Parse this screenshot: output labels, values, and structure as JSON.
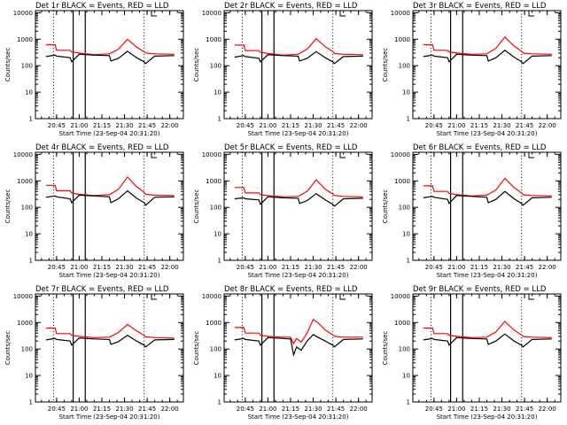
{
  "colors": {
    "events": "#000000",
    "lld": "#ff0000",
    "axes": "#000000",
    "background": "#ffffff"
  },
  "common": {
    "ylabel": "Counts/sec",
    "xlabel": "Start Time (23-Sep-04 20:31:20)",
    "xticks": [
      "20:45",
      "21:00",
      "21:15",
      "21:30",
      "21:45",
      "22:00"
    ],
    "yticks": [
      "1",
      "10",
      "100",
      "1000",
      "10000"
    ]
  },
  "chart_data": [
    {
      "type": "line",
      "title": "Det 1r BLACK = Events, RED = LLD",
      "xlabel": "Start Time (23-Sep-04 20:31:20)",
      "ylabel": "Counts/sec",
      "y_scale": "log",
      "ylim": [
        1,
        12000
      ],
      "xlim": [
        "20:31",
        "22:09"
      ],
      "series": [
        {
          "name": "LLD",
          "color": "#ff0000",
          "x": [
            "20:38",
            "20:44",
            "20:45",
            "20:54",
            "20:55",
            "21:00",
            "21:10",
            "21:20",
            "21:26",
            "21:32",
            "21:38",
            "21:43",
            "21:44",
            "21:50",
            "22:03"
          ],
          "values": [
            620,
            620,
            380,
            380,
            330,
            300,
            260,
            280,
            420,
            1000,
            500,
            340,
            300,
            280,
            270
          ]
        },
        {
          "name": "Events",
          "color": "#000000",
          "x": [
            "20:38",
            "20:44",
            "20:45",
            "20:54",
            "20:55",
            "21:00",
            "21:10",
            "21:20",
            "21:21",
            "21:26",
            "21:32",
            "21:38",
            "21:43",
            "21:44",
            "21:50",
            "22:03"
          ],
          "values": [
            220,
            250,
            230,
            200,
            140,
            270,
            250,
            240,
            150,
            190,
            350,
            200,
            140,
            120,
            230,
            240
          ]
        }
      ],
      "markers": {
        "dotted": [
          "20:43",
          "21:43"
        ],
        "solid": [
          "20:56",
          "21:04"
        ]
      }
    },
    {
      "type": "line",
      "title": "Det 2r BLACK = Events, RED = LLD",
      "xlabel": "Start Time (23-Sep-04 20:31:20)",
      "ylabel": "Counts/sec",
      "y_scale": "log",
      "ylim": [
        1,
        12000
      ],
      "xlim": [
        "20:31",
        "22:09"
      ],
      "series": [
        {
          "name": "LLD",
          "color": "#ff0000",
          "x": [
            "20:38",
            "20:44",
            "20:45",
            "20:54",
            "20:55",
            "21:00",
            "21:10",
            "21:20",
            "21:26",
            "21:32",
            "21:38",
            "21:43",
            "21:44",
            "21:50",
            "22:03"
          ],
          "values": [
            600,
            600,
            370,
            370,
            320,
            290,
            250,
            270,
            420,
            1050,
            520,
            340,
            290,
            270,
            260
          ]
        },
        {
          "name": "Events",
          "color": "#000000",
          "x": [
            "20:38",
            "20:44",
            "20:45",
            "20:54",
            "20:55",
            "21:00",
            "21:10",
            "21:20",
            "21:21",
            "21:26",
            "21:32",
            "21:38",
            "21:43",
            "21:44",
            "21:50",
            "22:03"
          ],
          "values": [
            210,
            240,
            220,
            190,
            140,
            260,
            240,
            230,
            150,
            190,
            340,
            200,
            140,
            120,
            220,
            230
          ]
        }
      ],
      "markers": {
        "dotted": [
          "20:43",
          "21:43"
        ],
        "solid": [
          "20:56",
          "21:04"
        ]
      }
    },
    {
      "type": "line",
      "title": "Det 3r BLACK = Events, RED = LLD",
      "xlabel": "Start Time (23-Sep-04 20:31:20)",
      "ylabel": "Counts/sec",
      "y_scale": "log",
      "ylim": [
        1,
        12000
      ],
      "xlim": [
        "20:31",
        "22:09"
      ],
      "series": [
        {
          "name": "LLD",
          "color": "#ff0000",
          "x": [
            "20:38",
            "20:44",
            "20:45",
            "20:54",
            "20:55",
            "21:00",
            "21:10",
            "21:20",
            "21:26",
            "21:32",
            "21:38",
            "21:43",
            "21:44",
            "21:50",
            "22:03"
          ],
          "values": [
            620,
            620,
            380,
            380,
            330,
            300,
            270,
            280,
            450,
            1200,
            550,
            350,
            300,
            280,
            270
          ]
        },
        {
          "name": "Events",
          "color": "#000000",
          "x": [
            "20:38",
            "20:44",
            "20:45",
            "20:54",
            "20:55",
            "21:00",
            "21:10",
            "21:20",
            "21:21",
            "21:26",
            "21:32",
            "21:38",
            "21:43",
            "21:44",
            "21:50",
            "22:03"
          ],
          "values": [
            220,
            250,
            230,
            200,
            140,
            270,
            250,
            240,
            150,
            200,
            380,
            210,
            140,
            120,
            230,
            240
          ]
        }
      ],
      "markers": {
        "dotted": [
          "20:43",
          "21:43"
        ],
        "solid": [
          "20:56",
          "21:04"
        ]
      }
    },
    {
      "type": "line",
      "title": "Det 4r BLACK = Events, RED = LLD",
      "xlabel": "Start Time (23-Sep-04 20:31:20)",
      "ylabel": "Counts/sec",
      "y_scale": "log",
      "ylim": [
        1,
        12000
      ],
      "xlim": [
        "20:31",
        "22:09"
      ],
      "series": [
        {
          "name": "LLD",
          "color": "#ff0000",
          "x": [
            "20:38",
            "20:44",
            "20:45",
            "20:54",
            "20:55",
            "21:00",
            "21:10",
            "21:20",
            "21:26",
            "21:32",
            "21:38",
            "21:43",
            "21:44",
            "21:50",
            "22:03"
          ],
          "values": [
            680,
            680,
            420,
            420,
            350,
            310,
            280,
            300,
            480,
            1400,
            600,
            370,
            310,
            290,
            280
          ]
        },
        {
          "name": "Events",
          "color": "#000000",
          "x": [
            "20:38",
            "20:44",
            "20:45",
            "20:54",
            "20:55",
            "21:00",
            "21:10",
            "21:20",
            "21:21",
            "21:26",
            "21:32",
            "21:38",
            "21:43",
            "21:44",
            "21:50",
            "22:03"
          ],
          "values": [
            240,
            270,
            250,
            210,
            150,
            290,
            270,
            250,
            150,
            210,
            420,
            220,
            150,
            120,
            240,
            250
          ]
        }
      ],
      "markers": {
        "dotted": [
          "20:43",
          "21:43"
        ],
        "solid": [
          "20:56",
          "21:04"
        ]
      }
    },
    {
      "type": "line",
      "title": "Det 5r BLACK = Events, RED = LLD",
      "xlabel": "Start Time (23-Sep-04 20:31:20)",
      "ylabel": "Counts/sec",
      "y_scale": "log",
      "ylim": [
        1,
        12000
      ],
      "xlim": [
        "20:31",
        "22:09"
      ],
      "series": [
        {
          "name": "LLD",
          "color": "#ff0000",
          "x": [
            "20:38",
            "20:44",
            "20:45",
            "20:54",
            "20:55",
            "21:00",
            "21:10",
            "21:20",
            "21:26",
            "21:32",
            "21:38",
            "21:43",
            "21:44",
            "21:50",
            "22:03"
          ],
          "values": [
            560,
            560,
            350,
            350,
            300,
            280,
            250,
            260,
            400,
            1100,
            480,
            320,
            280,
            260,
            250
          ]
        },
        {
          "name": "Events",
          "color": "#000000",
          "x": [
            "20:38",
            "20:44",
            "20:45",
            "20:54",
            "20:55",
            "21:00",
            "21:10",
            "21:20",
            "21:21",
            "21:26",
            "21:32",
            "21:38",
            "21:43",
            "21:44",
            "21:50",
            "22:03"
          ],
          "values": [
            210,
            230,
            210,
            190,
            130,
            250,
            230,
            220,
            140,
            180,
            330,
            190,
            130,
            110,
            210,
            220
          ]
        }
      ],
      "markers": {
        "dotted": [
          "20:43",
          "21:43"
        ],
        "solid": [
          "20:56",
          "21:04"
        ]
      }
    },
    {
      "type": "line",
      "title": "Det 6r BLACK = Events, RED = LLD",
      "xlabel": "Start Time (23-Sep-04 20:31:20)",
      "ylabel": "Counts/sec",
      "y_scale": "log",
      "ylim": [
        1,
        12000
      ],
      "xlim": [
        "20:31",
        "22:09"
      ],
      "series": [
        {
          "name": "LLD",
          "color": "#ff0000",
          "x": [
            "20:38",
            "20:44",
            "20:45",
            "20:54",
            "20:55",
            "21:00",
            "21:10",
            "21:20",
            "21:26",
            "21:32",
            "21:38",
            "21:43",
            "21:44",
            "21:50",
            "22:03"
          ],
          "values": [
            650,
            650,
            400,
            400,
            340,
            300,
            270,
            290,
            450,
            1250,
            560,
            350,
            300,
            280,
            270
          ]
        },
        {
          "name": "Events",
          "color": "#000000",
          "x": [
            "20:38",
            "20:44",
            "20:45",
            "20:54",
            "20:55",
            "21:00",
            "21:10",
            "21:20",
            "21:21",
            "21:26",
            "21:32",
            "21:38",
            "21:43",
            "21:44",
            "21:50",
            "22:03"
          ],
          "values": [
            230,
            260,
            240,
            200,
            140,
            280,
            260,
            240,
            150,
            200,
            400,
            210,
            140,
            120,
            230,
            240
          ]
        }
      ],
      "markers": {
        "dotted": [
          "20:43",
          "21:43"
        ],
        "solid": [
          "20:56",
          "21:04"
        ]
      }
    },
    {
      "type": "line",
      "title": "Det 7r BLACK = Events, RED = LLD",
      "xlabel": "Start Time (23-Sep-04 20:31:20)",
      "ylabel": "Counts/sec",
      "y_scale": "log",
      "ylim": [
        1,
        12000
      ],
      "xlim": [
        "20:31",
        "22:09"
      ],
      "series": [
        {
          "name": "LLD",
          "color": "#ff0000",
          "x": [
            "20:38",
            "20:44",
            "20:45",
            "20:54",
            "20:55",
            "21:00",
            "21:10",
            "21:20",
            "21:26",
            "21:32",
            "21:38",
            "21:43",
            "21:44",
            "21:50",
            "22:03"
          ],
          "values": [
            620,
            620,
            380,
            380,
            330,
            300,
            270,
            280,
            420,
            850,
            480,
            330,
            290,
            270,
            260
          ]
        },
        {
          "name": "Events",
          "color": "#000000",
          "x": [
            "20:38",
            "20:44",
            "20:45",
            "20:54",
            "20:55",
            "21:00",
            "21:10",
            "21:20",
            "21:21",
            "21:26",
            "21:32",
            "21:38",
            "21:43",
            "21:44",
            "21:50",
            "22:03"
          ],
          "values": [
            220,
            250,
            230,
            200,
            140,
            260,
            240,
            230,
            150,
            190,
            330,
            200,
            140,
            120,
            220,
            230
          ]
        }
      ],
      "markers": {
        "dotted": [
          "20:43",
          "21:43"
        ],
        "solid": [
          "20:56",
          "21:04"
        ]
      }
    },
    {
      "type": "line",
      "title": "Det 8r BLACK = Events, RED = LLD",
      "xlabel": "Start Time (23-Sep-04 20:31:20)",
      "ylabel": "Counts/sec",
      "y_scale": "log",
      "ylim": [
        1,
        12000
      ],
      "xlim": [
        "20:31",
        "22:09"
      ],
      "series": [
        {
          "name": "LLD",
          "color": "#ff0000",
          "x": [
            "20:38",
            "20:44",
            "20:45",
            "20:54",
            "20:55",
            "21:00",
            "21:10",
            "21:15",
            "21:17",
            "21:19",
            "21:22",
            "21:26",
            "21:30",
            "21:33",
            "21:38",
            "21:43",
            "21:44",
            "21:50",
            "22:03"
          ],
          "values": [
            650,
            650,
            400,
            400,
            330,
            300,
            280,
            280,
            160,
            250,
            180,
            400,
            1300,
            1000,
            520,
            340,
            300,
            280,
            280
          ]
        },
        {
          "name": "Events",
          "color": "#000000",
          "x": [
            "20:38",
            "20:44",
            "20:45",
            "20:54",
            "20:55",
            "21:00",
            "21:10",
            "21:15",
            "21:17",
            "21:19",
            "21:22",
            "21:26",
            "21:30",
            "21:33",
            "21:38",
            "21:43",
            "21:44",
            "21:50",
            "22:03"
          ],
          "values": [
            220,
            250,
            230,
            200,
            140,
            270,
            250,
            240,
            60,
            120,
            90,
            200,
            350,
            280,
            200,
            140,
            120,
            230,
            240
          ]
        }
      ],
      "markers": {
        "dotted": [
          "20:43",
          "21:43"
        ],
        "solid": [
          "20:56",
          "21:04"
        ]
      }
    },
    {
      "type": "line",
      "title": "Det 9r BLACK = Events, RED = LLD",
      "xlabel": "Start Time (23-Sep-04 20:31:20)",
      "ylabel": "Counts/sec",
      "y_scale": "log",
      "ylim": [
        1,
        12000
      ],
      "xlim": [
        "20:31",
        "22:09"
      ],
      "series": [
        {
          "name": "LLD",
          "color": "#ff0000",
          "x": [
            "20:38",
            "20:44",
            "20:45",
            "20:54",
            "20:55",
            "21:00",
            "21:10",
            "21:20",
            "21:26",
            "21:32",
            "21:38",
            "21:43",
            "21:44",
            "21:50",
            "22:03"
          ],
          "values": [
            620,
            620,
            380,
            380,
            330,
            300,
            270,
            280,
            440,
            1100,
            520,
            340,
            300,
            280,
            270
          ]
        },
        {
          "name": "Events",
          "color": "#000000",
          "x": [
            "20:38",
            "20:44",
            "20:45",
            "20:54",
            "20:55",
            "21:00",
            "21:10",
            "21:20",
            "21:21",
            "21:26",
            "21:32",
            "21:38",
            "21:43",
            "21:44",
            "21:50",
            "22:03"
          ],
          "values": [
            220,
            250,
            230,
            200,
            140,
            270,
            250,
            240,
            150,
            200,
            370,
            200,
            140,
            120,
            230,
            240
          ]
        }
      ],
      "markers": {
        "dotted": [
          "20:43",
          "21:43"
        ],
        "solid": [
          "20:56",
          "21:04"
        ]
      }
    }
  ]
}
